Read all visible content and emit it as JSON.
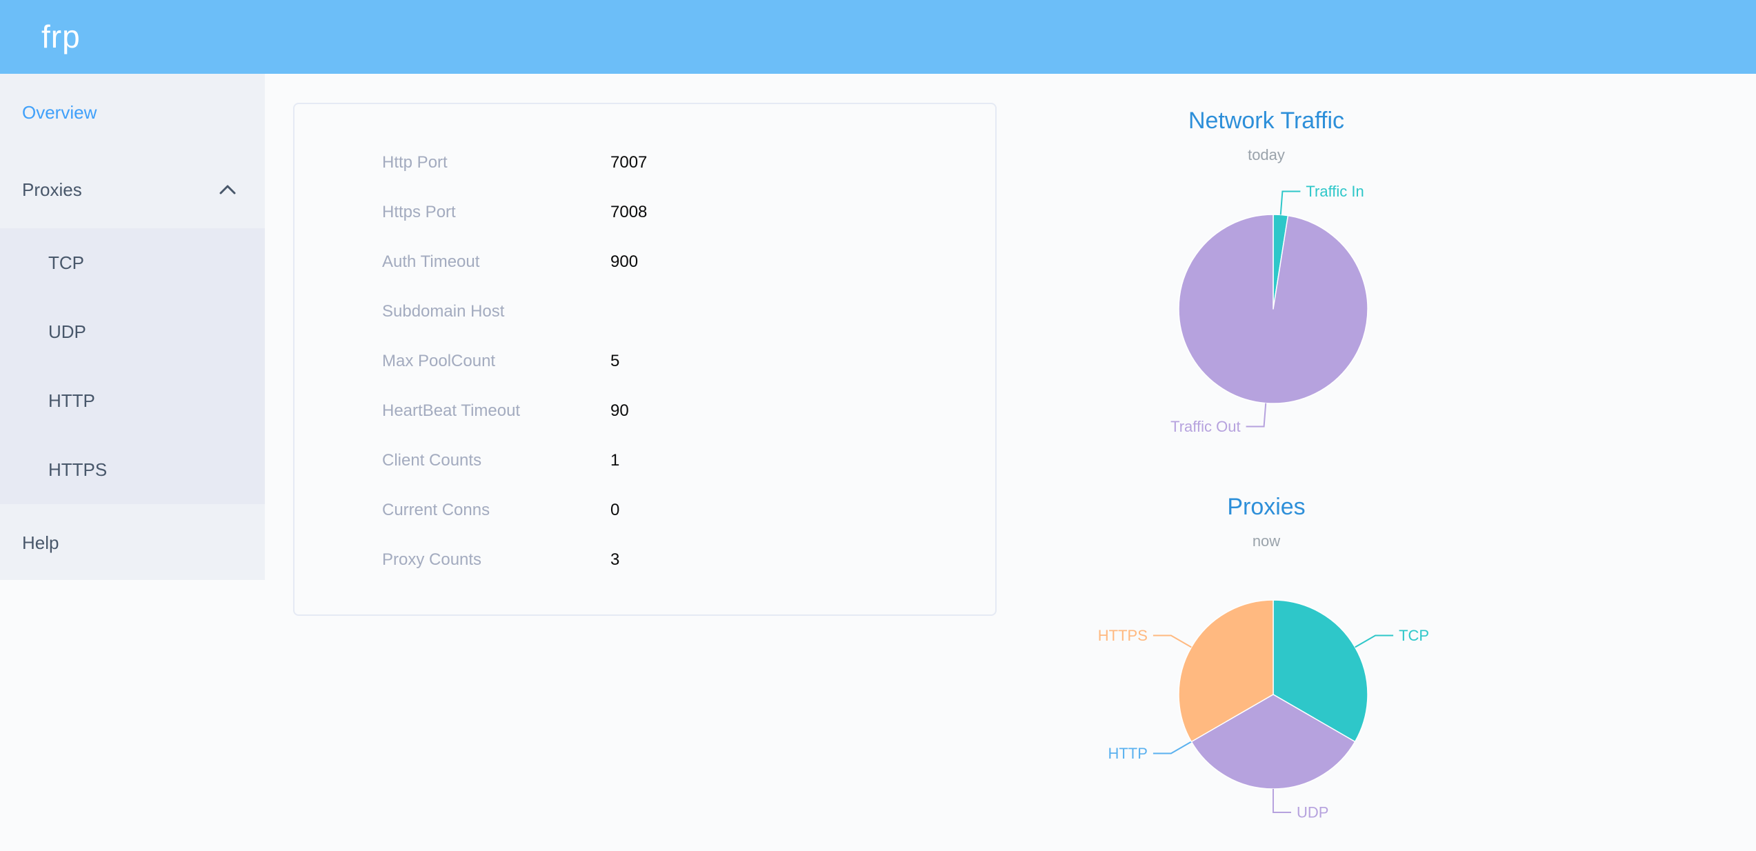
{
  "header": {
    "logo": "frp"
  },
  "sidebar": {
    "items": [
      {
        "label": "Overview",
        "active": true
      },
      {
        "label": "Proxies",
        "expanded": true,
        "icon": "chevron-up",
        "children": [
          "TCP",
          "UDP",
          "HTTP",
          "HTTPS"
        ]
      },
      {
        "label": "Help"
      }
    ]
  },
  "overview_card": {
    "rows": [
      {
        "label": "Http Port",
        "value": "7007"
      },
      {
        "label": "Https Port",
        "value": "7008"
      },
      {
        "label": "Auth Timeout",
        "value": "900"
      },
      {
        "label": "Subdomain Host",
        "value": ""
      },
      {
        "label": "Max PoolCount",
        "value": "5"
      },
      {
        "label": "HeartBeat Timeout",
        "value": "90"
      },
      {
        "label": "Client Counts",
        "value": "1"
      },
      {
        "label": "Current Conns",
        "value": "0"
      },
      {
        "label": "Proxy Counts",
        "value": "3"
      }
    ]
  },
  "colors": {
    "header_bg": "#6cbef8",
    "sidebar_active": "#3fa0fa",
    "chart_title": "#2d8fd9",
    "teal": "#2ec7c9",
    "purple": "#b6a2de",
    "blue": "#5ab1ef",
    "orange": "#ffb980"
  },
  "chart_data": [
    {
      "type": "pie",
      "title": "Network Traffic",
      "subtitle": "today",
      "note": "values are share estimates read from arc angles",
      "legend_position": "callout-labels",
      "slices": [
        {
          "label": "Traffic In",
          "value": 2.5,
          "color": "#2ec7c9"
        },
        {
          "label": "Traffic Out",
          "value": 97.5,
          "color": "#b6a2de"
        }
      ]
    },
    {
      "type": "pie",
      "title": "Proxies",
      "subtitle": "now",
      "note": "counts of proxies by type; HTTP slice is zero-width",
      "legend_position": "callout-labels",
      "slices": [
        {
          "label": "TCP",
          "value": 1,
          "color": "#2ec7c9"
        },
        {
          "label": "UDP",
          "value": 1,
          "color": "#b6a2de"
        },
        {
          "label": "HTTP",
          "value": 0,
          "color": "#5ab1ef"
        },
        {
          "label": "HTTPS",
          "value": 1,
          "color": "#ffb980"
        }
      ]
    }
  ]
}
